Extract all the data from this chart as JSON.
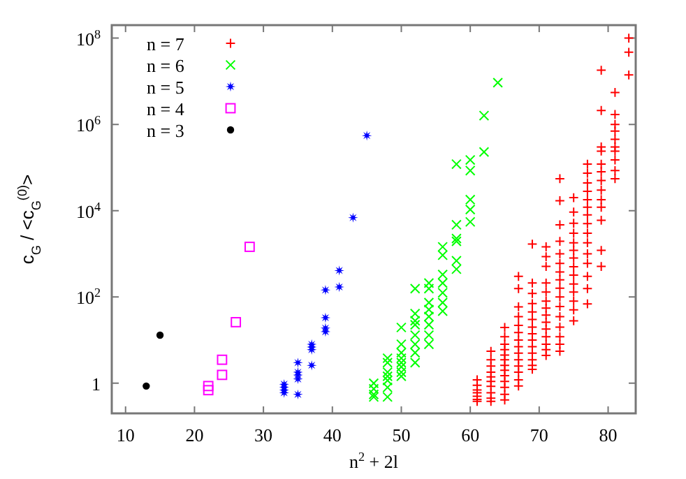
{
  "chart_data": {
    "type": "scatter",
    "xlabel": "n$^{2}$ + 2l",
    "ylabel": "c$_{G}$ / <c$_{G}$$^{(0)}$>",
    "log": "y",
    "legend": "top left",
    "xlim": [
      8,
      84
    ],
    "xticks": [
      10,
      20,
      30,
      40,
      50,
      60,
      70,
      80
    ],
    "ylim": [
      0.2,
      200000000
    ],
    "yticks": [
      1,
      {
        "value": 100,
        "label": "10$^{2}$"
      },
      {
        "value": 10000,
        "label": "10$^{4}$"
      },
      {
        "value": 1000000,
        "label": "10$^{6}$"
      },
      {
        "value": 100000000,
        "label": "10$^{8}$"
      }
    ],
    "series": [
      {
        "name": "n = 7",
        "color": "#ff0000",
        "marker": "plus",
        "x": [
          61,
          61,
          61,
          61,
          61,
          61,
          61,
          63,
          63,
          63,
          63,
          63,
          63,
          63,
          63,
          63,
          63,
          65,
          65,
          65,
          65,
          65,
          65,
          65,
          65,
          65,
          65,
          65,
          65,
          65,
          67,
          67,
          67,
          67,
          67,
          67,
          67,
          67,
          67,
          67,
          67,
          67,
          67,
          67,
          69,
          69,
          69,
          69,
          69,
          69,
          69,
          69,
          69,
          69,
          69,
          69,
          69,
          69,
          71,
          71,
          71,
          71,
          71,
          71,
          71,
          71,
          71,
          71,
          71,
          71,
          71,
          71,
          73,
          73,
          73,
          73,
          73,
          73,
          73,
          73,
          73,
          73,
          73,
          73,
          73,
          73,
          73,
          73,
          75,
          75,
          75,
          75,
          75,
          75,
          75,
          75,
          75,
          75,
          75,
          75,
          75,
          75,
          77,
          77,
          77,
          77,
          77,
          77,
          77,
          77,
          77,
          77,
          77,
          77,
          77,
          77,
          77,
          79,
          79,
          79,
          79,
          79,
          79,
          79,
          79,
          79,
          79,
          79,
          79,
          79,
          81,
          81,
          81,
          81,
          81,
          81,
          81,
          81,
          81,
          81,
          83,
          83,
          83
        ],
        "values": [
          1.2,
          0.9,
          0.7,
          0.6,
          0.5,
          0.42,
          0.38,
          5.5,
          3.5,
          2.5,
          1.8,
          1.4,
          1.1,
          0.85,
          0.6,
          0.45,
          0.38,
          19.6,
          12,
          8,
          6,
          4.5,
          3.5,
          2.6,
          2,
          1.5,
          1.1,
          0.8,
          0.55,
          0.41,
          300,
          156,
          59,
          35,
          22,
          15,
          10,
          7,
          5,
          3.5,
          2.5,
          1.8,
          1.2,
          0.86,
          1680,
          210,
          120,
          70,
          45,
          30,
          20,
          14,
          10,
          7,
          5,
          3.5,
          2.6,
          2.1,
          1450,
          860,
          510,
          210,
          130,
          80,
          55,
          38,
          26,
          18,
          12,
          8,
          6,
          4.4,
          55000,
          17000,
          4700,
          1950,
          1000,
          600,
          380,
          250,
          160,
          100,
          60,
          35,
          20,
          12,
          8,
          5.5,
          20000,
          9300,
          5100,
          3000,
          1800,
          1200,
          800,
          500,
          320,
          200,
          130,
          80,
          50,
          28,
          120000,
          74000,
          44000,
          28000,
          18000,
          12000,
          8000,
          5000,
          3000,
          1800,
          1000,
          600,
          300,
          156,
          69,
          18000000,
          2100000,
          300000,
          240000,
          120000,
          80000,
          50000,
          30000,
          18000,
          12000,
          6000,
          1200,
          510,
          5500000,
          1700000,
          1000000,
          700000,
          450000,
          300000,
          240000,
          150000,
          85000,
          55000,
          100000000,
          47000000,
          14000000
        ]
      },
      {
        "name": "n = 6",
        "color": "#00ff00",
        "marker": "cross",
        "x": [
          46,
          46,
          46,
          46,
          48,
          48,
          48,
          48,
          48,
          48,
          48,
          50,
          50,
          50,
          50,
          50,
          50,
          50,
          50,
          52,
          52,
          52,
          52,
          52,
          52,
          52,
          52,
          54,
          54,
          54,
          54,
          54,
          54,
          54,
          54,
          56,
          56,
          56,
          56,
          56,
          56,
          56,
          58,
          58,
          58,
          58,
          58,
          58,
          60,
          60,
          60,
          60,
          60,
          62,
          62,
          64
        ],
        "values": [
          1,
          0.74,
          0.55,
          0.48,
          3.8,
          3,
          1.8,
          1.45,
          1.16,
          0.8,
          0.48,
          19.6,
          8,
          5.1,
          3.8,
          3,
          2.4,
          1.8,
          1.45,
          156,
          41,
          28,
          22.6,
          13,
          8,
          5.1,
          3,
          210,
          156,
          74,
          51,
          35,
          22.6,
          13,
          8,
          1450,
          930,
          330,
          210,
          125,
          74,
          47,
          120000,
          4700,
          2260,
          1950,
          690,
          440,
          150000,
          85000,
          18000,
          10600,
          5500,
          1600000,
          230000,
          9300000
        ]
      },
      {
        "name": "n = 5",
        "color": "#0000ff",
        "marker": "star",
        "x": [
          33,
          33,
          33,
          33,
          35,
          35,
          35,
          35,
          35,
          37,
          37,
          37,
          37,
          39,
          39,
          39,
          39,
          41,
          41,
          43,
          45
        ],
        "values": [
          0.95,
          0.8,
          0.7,
          0.6,
          3,
          1.8,
          1.55,
          1.25,
          0.55,
          8,
          6.9,
          6,
          2.6,
          145,
          33,
          19,
          15.6,
          410,
          170,
          6900,
          550000
        ]
      },
      {
        "name": "n = 4",
        "color": "#ff00ff",
        "marker": "square",
        "x": [
          22,
          22,
          24,
          24,
          26,
          28
        ],
        "values": [
          0.86,
          0.69,
          3.5,
          1.56,
          26,
          1450
        ]
      },
      {
        "name": "n = 3",
        "color": "#000000",
        "marker": "circle",
        "x": [
          13,
          15
        ],
        "values": [
          0.86,
          13
        ]
      }
    ]
  }
}
